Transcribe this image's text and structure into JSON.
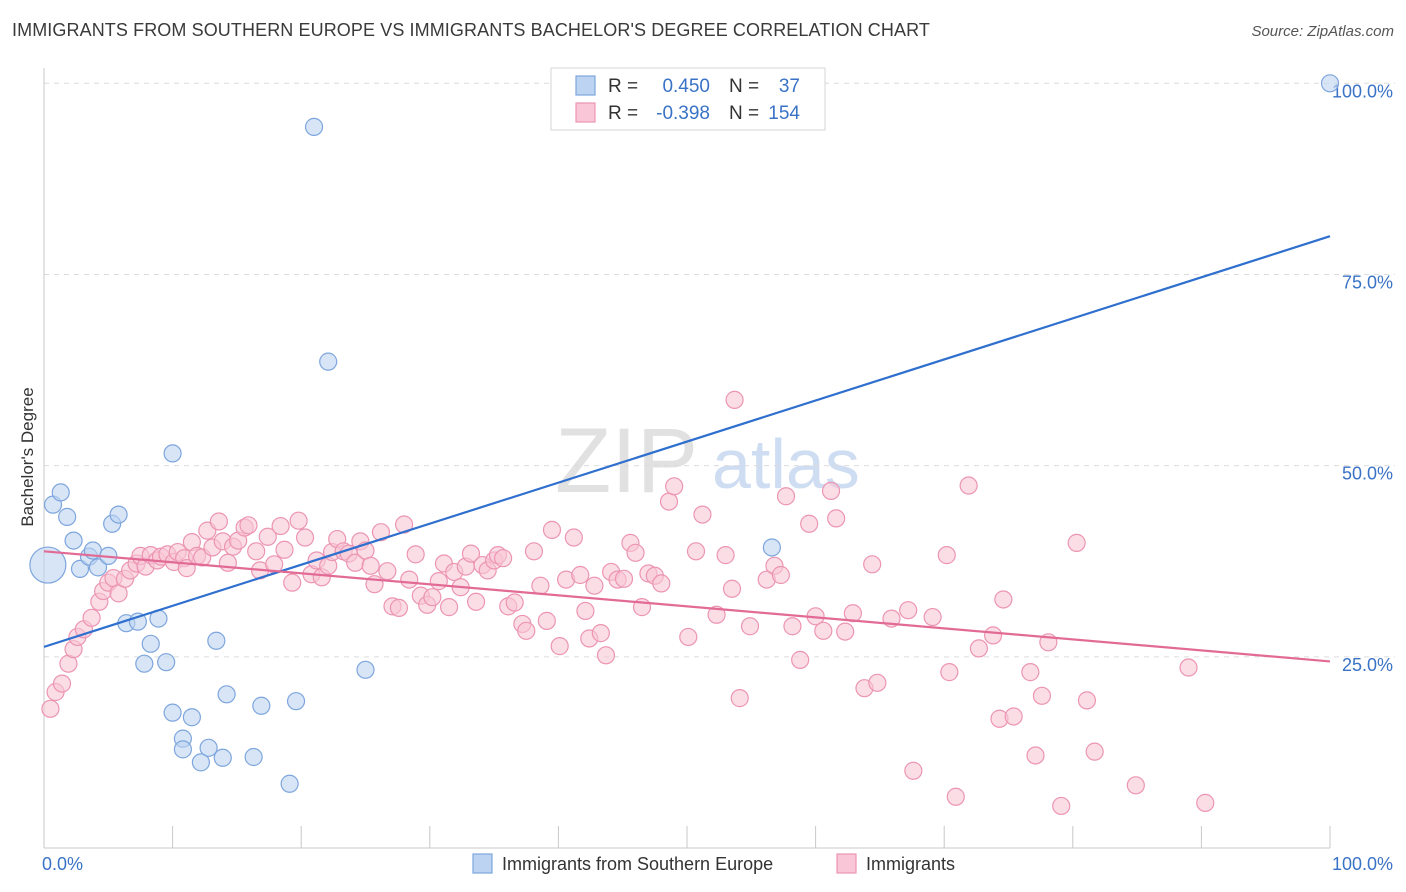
{
  "title": "IMMIGRANTS FROM SOUTHERN EUROPE VS IMMIGRANTS BACHELOR'S DEGREE CORRELATION CHART",
  "source": "Source: ZipAtlas.com",
  "watermark": {
    "bold": "ZIP",
    "light": "atlas"
  },
  "colors": {
    "blue_fill": "#bcd3f2",
    "blue_stroke": "#7ea6dd",
    "blue_line": "#2f6fce",
    "blue_text": "#3a73c6",
    "pink_fill": "#f8c6d6",
    "pink_stroke": "#ec95b3",
    "pink_line": "#e26b96",
    "grid": "#dcdcdc",
    "axis": "#c8c8c8",
    "text": "#333333"
  },
  "legend_box": {
    "rows": [
      {
        "r_label": "R =",
        "r_value": "0.450",
        "n_label": "N =",
        "n_value": "37"
      },
      {
        "r_label": "R =",
        "r_value": "-0.398",
        "n_label": "N =",
        "n_value": "154"
      }
    ]
  },
  "chart_data": {
    "type": "scatter",
    "title": "IMMIGRANTS FROM SOUTHERN EUROPE VS IMMIGRANTS BACHELOR'S DEGREE CORRELATION CHART",
    "xlabel": "",
    "ylabel": "Bachelor's Degree",
    "xlim": [
      0,
      100
    ],
    "ylim": [
      0,
      102
    ],
    "x_tick_labels": [
      "0.0%",
      "100.0%"
    ],
    "y_ticks": [
      {
        "value": 25,
        "label": "25.0%"
      },
      {
        "value": 50,
        "label": "50.0%"
      },
      {
        "value": 75,
        "label": "75.0%"
      },
      {
        "value": 100,
        "label": "100.0%"
      }
    ],
    "series": [
      {
        "name": "Immigrants from Southern Europe",
        "color": "blue",
        "r": 0.45,
        "n": 37,
        "trend": {
          "x0": 0,
          "y0": 26.3,
          "x1": 100,
          "y1": 80.0
        },
        "points": [
          [
            0.3,
            37.0,
            "big"
          ],
          [
            0.7,
            44.9
          ],
          [
            1.3,
            46.5
          ],
          [
            1.8,
            43.3
          ],
          [
            2.3,
            40.2
          ],
          [
            2.8,
            36.5
          ],
          [
            3.5,
            38.1
          ],
          [
            3.8,
            38.9
          ],
          [
            4.2,
            36.7
          ],
          [
            5.0,
            38.2
          ],
          [
            5.3,
            42.4
          ],
          [
            5.8,
            43.6
          ],
          [
            6.4,
            29.4
          ],
          [
            7.3,
            29.6
          ],
          [
            7.8,
            24.1
          ],
          [
            8.3,
            26.7
          ],
          [
            8.9,
            30.0
          ],
          [
            9.5,
            24.3
          ],
          [
            10.0,
            17.7
          ],
          [
            10.8,
            14.3
          ],
          [
            10.8,
            12.9
          ],
          [
            11.5,
            17.1
          ],
          [
            12.2,
            11.2
          ],
          [
            12.8,
            13.1
          ],
          [
            13.4,
            27.1
          ],
          [
            13.9,
            11.8
          ],
          [
            14.2,
            20.1
          ],
          [
            16.3,
            11.9
          ],
          [
            16.9,
            18.6
          ],
          [
            19.1,
            8.4
          ],
          [
            19.6,
            19.2
          ],
          [
            21.0,
            94.3
          ],
          [
            22.1,
            63.6
          ],
          [
            25.0,
            23.3
          ],
          [
            10.0,
            51.6
          ],
          [
            56.6,
            39.3
          ],
          [
            100.0,
            100.0
          ]
        ]
      },
      {
        "name": "Immigrants",
        "color": "pink",
        "r": -0.398,
        "n": 154,
        "trend": {
          "x0": 0,
          "y0": 38.8,
          "x1": 100,
          "y1": 24.4
        },
        "points": [
          [
            0.5,
            18.2
          ],
          [
            0.9,
            20.4
          ],
          [
            1.4,
            21.5
          ],
          [
            1.9,
            24.1
          ],
          [
            2.3,
            26.0
          ],
          [
            2.6,
            27.6
          ],
          [
            3.1,
            28.6
          ],
          [
            3.7,
            30.1
          ],
          [
            4.3,
            32.2
          ],
          [
            4.6,
            33.6
          ],
          [
            5.0,
            34.7
          ],
          [
            5.4,
            35.3
          ],
          [
            5.8,
            33.3
          ],
          [
            6.3,
            35.2
          ],
          [
            6.7,
            36.3
          ],
          [
            7.2,
            37.2
          ],
          [
            7.5,
            38.2
          ],
          [
            7.9,
            36.8
          ],
          [
            8.3,
            38.3
          ],
          [
            8.8,
            37.6
          ],
          [
            9.1,
            38.1
          ],
          [
            9.6,
            38.4
          ],
          [
            10.1,
            37.4
          ],
          [
            10.4,
            38.7
          ],
          [
            10.9,
            37.9
          ],
          [
            11.1,
            36.6
          ],
          [
            11.5,
            40.0
          ],
          [
            11.9,
            38.2
          ],
          [
            12.3,
            38.0
          ],
          [
            12.7,
            41.5
          ],
          [
            13.1,
            39.3
          ],
          [
            13.6,
            42.7
          ],
          [
            13.9,
            40.1
          ],
          [
            14.3,
            37.3
          ],
          [
            14.7,
            39.4
          ],
          [
            15.1,
            40.2
          ],
          [
            15.6,
            41.9
          ],
          [
            15.9,
            42.2
          ],
          [
            16.5,
            38.8
          ],
          [
            16.8,
            36.3
          ],
          [
            17.4,
            40.7
          ],
          [
            17.9,
            37.1
          ],
          [
            18.4,
            42.1
          ],
          [
            18.7,
            39.0
          ],
          [
            19.3,
            34.7
          ],
          [
            19.8,
            42.8
          ],
          [
            20.3,
            40.6
          ],
          [
            20.8,
            35.8
          ],
          [
            21.2,
            37.6
          ],
          [
            21.6,
            35.4
          ],
          [
            22.1,
            36.9
          ],
          [
            22.4,
            38.7
          ],
          [
            22.8,
            40.4
          ],
          [
            23.3,
            38.8
          ],
          [
            23.7,
            38.5
          ],
          [
            24.2,
            37.3
          ],
          [
            24.6,
            40.1
          ],
          [
            25.0,
            38.9
          ],
          [
            25.4,
            36.9
          ],
          [
            25.7,
            34.5
          ],
          [
            26.2,
            41.3
          ],
          [
            26.7,
            36.2
          ],
          [
            27.1,
            31.6
          ],
          [
            27.6,
            31.4
          ],
          [
            28.0,
            42.3
          ],
          [
            28.4,
            35.1
          ],
          [
            28.9,
            38.4
          ],
          [
            29.3,
            33.0
          ],
          [
            29.8,
            31.8
          ],
          [
            30.2,
            32.8
          ],
          [
            30.7,
            34.9
          ],
          [
            31.1,
            37.2
          ],
          [
            31.5,
            31.5
          ],
          [
            31.9,
            36.1
          ],
          [
            32.4,
            34.1
          ],
          [
            32.8,
            36.8
          ],
          [
            33.2,
            38.5
          ],
          [
            33.6,
            32.2
          ],
          [
            34.1,
            37.0
          ],
          [
            34.5,
            36.3
          ],
          [
            35.0,
            37.6
          ],
          [
            35.3,
            38.3
          ],
          [
            35.7,
            37.9
          ],
          [
            36.1,
            31.6
          ],
          [
            36.6,
            32.1
          ],
          [
            37.2,
            29.3
          ],
          [
            37.5,
            28.4
          ],
          [
            38.1,
            38.8
          ],
          [
            38.6,
            34.3
          ],
          [
            39.1,
            29.7
          ],
          [
            39.5,
            41.6
          ],
          [
            40.1,
            26.4
          ],
          [
            40.6,
            35.1
          ],
          [
            41.2,
            40.6
          ],
          [
            41.7,
            35.7
          ],
          [
            42.1,
            31.0
          ],
          [
            42.4,
            27.4
          ],
          [
            42.8,
            34.3
          ],
          [
            43.3,
            28.1
          ],
          [
            43.7,
            25.2
          ],
          [
            44.1,
            36.1
          ],
          [
            44.6,
            35.1
          ],
          [
            45.1,
            35.2
          ],
          [
            45.6,
            39.9
          ],
          [
            46.0,
            38.6
          ],
          [
            46.5,
            31.5
          ],
          [
            47.0,
            35.9
          ],
          [
            47.5,
            35.6
          ],
          [
            48.0,
            34.6
          ],
          [
            48.6,
            45.3
          ],
          [
            49.0,
            47.3
          ],
          [
            50.1,
            27.6
          ],
          [
            50.7,
            38.8
          ],
          [
            51.2,
            43.6
          ],
          [
            52.3,
            30.5
          ],
          [
            53.0,
            38.3
          ],
          [
            53.5,
            33.9
          ],
          [
            54.1,
            19.6
          ],
          [
            54.9,
            29.0
          ],
          [
            56.2,
            35.1
          ],
          [
            56.8,
            36.9
          ],
          [
            57.3,
            35.7
          ],
          [
            57.7,
            46.0
          ],
          [
            58.2,
            29.0
          ],
          [
            58.8,
            24.6
          ],
          [
            59.5,
            42.4
          ],
          [
            60.0,
            30.3
          ],
          [
            60.6,
            28.4
          ],
          [
            61.2,
            46.7
          ],
          [
            61.6,
            43.1
          ],
          [
            62.3,
            28.3
          ],
          [
            62.9,
            30.7
          ],
          [
            63.8,
            20.9
          ],
          [
            64.4,
            37.1
          ],
          [
            64.8,
            21.6
          ],
          [
            65.9,
            30.0
          ],
          [
            67.2,
            31.1
          ],
          [
            67.6,
            10.1
          ],
          [
            69.1,
            30.2
          ],
          [
            70.2,
            38.3
          ],
          [
            70.4,
            23.0
          ],
          [
            70.9,
            6.7
          ],
          [
            71.9,
            47.4
          ],
          [
            72.7,
            26.1
          ],
          [
            73.8,
            27.8
          ],
          [
            74.3,
            16.9
          ],
          [
            74.6,
            32.5
          ],
          [
            75.4,
            17.2
          ],
          [
            76.7,
            23.0
          ],
          [
            77.1,
            12.1
          ],
          [
            77.6,
            19.9
          ],
          [
            78.1,
            26.9
          ],
          [
            79.1,
            5.5
          ],
          [
            80.3,
            39.9
          ],
          [
            81.1,
            19.3
          ],
          [
            81.7,
            12.6
          ],
          [
            84.9,
            8.2
          ],
          [
            89.0,
            23.6
          ],
          [
            90.3,
            5.9
          ],
          [
            53.7,
            58.6
          ]
        ]
      }
    ]
  }
}
